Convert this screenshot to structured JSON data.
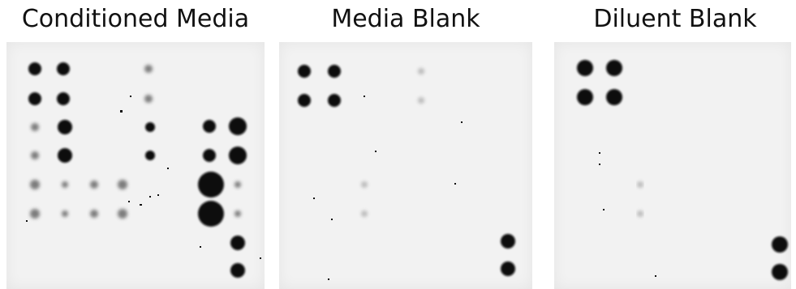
{
  "figure": {
    "panels": [
      {
        "id": "conditioned-media",
        "title": "Conditioned Media"
      },
      {
        "id": "media-blank",
        "title": "Media Blank"
      },
      {
        "id": "diluent-blank",
        "title": "Diluent Blank"
      }
    ]
  }
}
